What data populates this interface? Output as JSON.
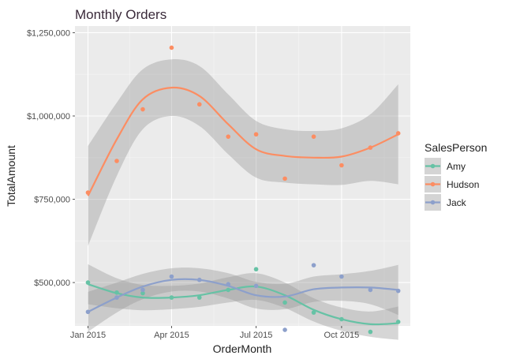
{
  "chart_data": {
    "type": "scatter",
    "title": "Monthly Orders",
    "xlabel": "OrderMonth",
    "ylabel": "TotalAmount",
    "x": [
      "2015-01",
      "2015-02",
      "2015-03",
      "2015-04",
      "2015-05",
      "2015-06",
      "2015-07",
      "2015-08",
      "2015-09",
      "2015-10",
      "2015-11",
      "2015-12"
    ],
    "xlim": [
      "2014-12-18",
      "2015-12-14"
    ],
    "ylim": [
      370000,
      1270000
    ],
    "x_ticks": [
      {
        "date": "2015-01-01",
        "label": "Jan 2015"
      },
      {
        "date": "2015-04-01",
        "label": "Apr 2015"
      },
      {
        "date": "2015-07-01",
        "label": "Jul 2015"
      },
      {
        "date": "2015-10-01",
        "label": "Oct 2015"
      }
    ],
    "y_ticks": [
      {
        "value": 500000,
        "label": "$500,000"
      },
      {
        "value": 750000,
        "label": "$750,000"
      },
      {
        "value": 1000000,
        "label": "$1,000,000"
      },
      {
        "value": 1250000,
        "label": "$1,250,000"
      }
    ],
    "grid": true,
    "smoothing": "loess with confidence band",
    "legend": {
      "title": "SalesPerson",
      "position": "right"
    },
    "series": [
      {
        "name": "Amy",
        "color": "#66c2a5",
        "values": [
          500000,
          470000,
          468000,
          455000,
          455000,
          478000,
          540000,
          440000,
          410000,
          390000,
          352000,
          382000
        ],
        "smooth": [
          495000,
          468000,
          455000,
          455000,
          462000,
          478000,
          488000,
          462000,
          418000,
          390000,
          375000,
          378000
        ]
      },
      {
        "name": "Hudson",
        "color": "#fc8d62",
        "values": [
          770000,
          865000,
          1020000,
          1205000,
          1035000,
          938000,
          945000,
          812000,
          938000,
          852000,
          905000,
          948000
        ],
        "smooth": [
          760000,
          930000,
          1050000,
          1085000,
          1060000,
          975000,
          900000,
          880000,
          875000,
          878000,
          905000,
          945000
        ]
      },
      {
        "name": "Jack",
        "color": "#8da0cb",
        "values": [
          412000,
          455000,
          478000,
          518000,
          508000,
          495000,
          490000,
          358000,
          552000,
          518000,
          478000,
          475000
        ],
        "smooth": [
          412000,
          455000,
          488000,
          508000,
          508000,
          490000,
          462000,
          458000,
          480000,
          485000,
          485000,
          478000
        ]
      }
    ]
  }
}
